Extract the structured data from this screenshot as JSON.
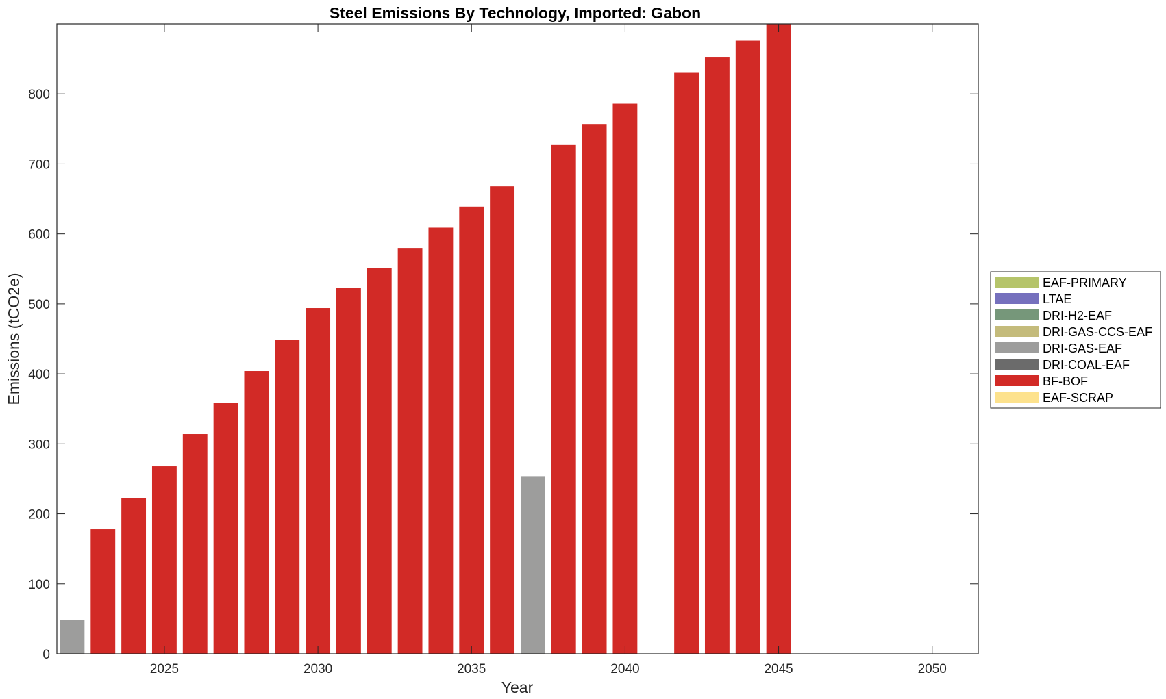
{
  "chart_data": {
    "type": "bar",
    "stacked": true,
    "title": "Steel Emissions By Technology, Imported: Gabon",
    "xlabel": "Year",
    "ylabel": "Emissions (tCO2e)",
    "xlim": [
      2021.5,
      2051.5
    ],
    "ylim": [
      0,
      900
    ],
    "x_ticks": [
      2025,
      2030,
      2035,
      2040,
      2045,
      2050
    ],
    "y_ticks": [
      0,
      100,
      200,
      300,
      400,
      500,
      600,
      700,
      800
    ],
    "legend_position": "right",
    "grid": false,
    "x": [
      2022,
      2023,
      2024,
      2025,
      2026,
      2027,
      2028,
      2029,
      2030,
      2031,
      2032,
      2033,
      2034,
      2035,
      2036,
      2037,
      2038,
      2039,
      2040,
      2041,
      2042,
      2043,
      2044,
      2045
    ],
    "series": [
      {
        "name": "EAF-PRIMARY",
        "color": "#b5c46a",
        "values": [
          0,
          0,
          0,
          0,
          0,
          0,
          0,
          0,
          0,
          0,
          0,
          0,
          0,
          0,
          0,
          0,
          0,
          0,
          0,
          0,
          0,
          0,
          0,
          0
        ]
      },
      {
        "name": "LTAE",
        "color": "#7570bd",
        "values": [
          0,
          0,
          0,
          0,
          0,
          0,
          0,
          0,
          0,
          0,
          0,
          0,
          0,
          0,
          0,
          0,
          0,
          0,
          0,
          0,
          0,
          0,
          0,
          0
        ]
      },
      {
        "name": "DRI-H2-EAF",
        "color": "#76977a",
        "values": [
          0,
          0,
          0,
          0,
          0,
          0,
          0,
          0,
          0,
          0,
          0,
          0,
          0,
          0,
          0,
          0,
          0,
          0,
          0,
          0,
          0,
          0,
          0,
          0
        ]
      },
      {
        "name": "DRI-GAS-CCS-EAF",
        "color": "#c4bb7b",
        "values": [
          0,
          0,
          0,
          0,
          0,
          0,
          0,
          0,
          0,
          0,
          0,
          0,
          0,
          0,
          0,
          0,
          0,
          0,
          0,
          0,
          0,
          0,
          0,
          0
        ]
      },
      {
        "name": "DRI-GAS-EAF",
        "color": "#9d9d9c",
        "values": [
          48,
          0,
          0,
          0,
          0,
          0,
          0,
          0,
          0,
          0,
          0,
          0,
          0,
          0,
          0,
          253,
          0,
          0,
          0,
          0,
          0,
          0,
          0,
          0
        ]
      },
      {
        "name": "DRI-COAL-EAF",
        "color": "#6b6b6b",
        "values": [
          0,
          0,
          0,
          0,
          0,
          0,
          0,
          0,
          0,
          0,
          0,
          0,
          0,
          0,
          0,
          0,
          0,
          0,
          0,
          0,
          0,
          0,
          0,
          0
        ]
      },
      {
        "name": "BF-BOF",
        "color": "#d22a26",
        "values": [
          0,
          178,
          223,
          268,
          314,
          359,
          404,
          449,
          494,
          523,
          551,
          580,
          609,
          639,
          668,
          0,
          727,
          757,
          786,
          0,
          831,
          853,
          876,
          900
        ]
      },
      {
        "name": "EAF-SCRAP",
        "color": "#fde28d",
        "values": [
          0,
          0,
          0,
          0,
          0,
          0,
          0,
          0,
          0,
          0,
          0,
          0,
          0,
          0,
          0,
          0,
          0,
          0,
          0,
          0,
          0,
          0,
          0,
          0
        ]
      }
    ]
  }
}
